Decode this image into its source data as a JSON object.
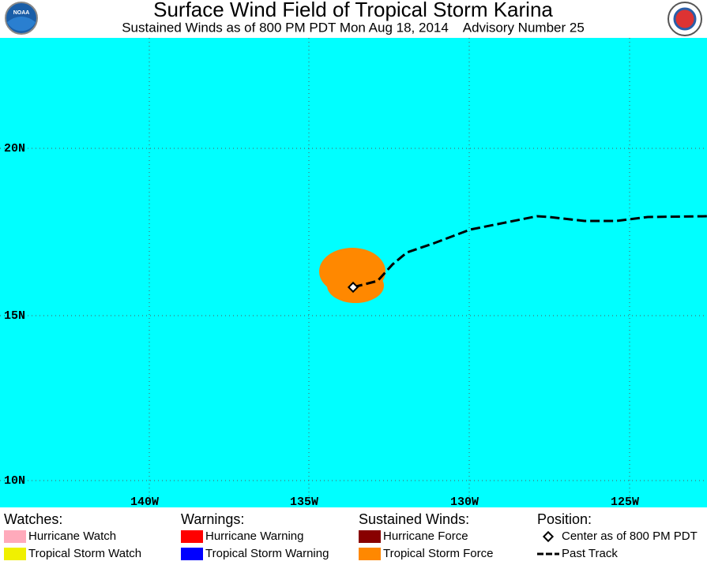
{
  "header": {
    "title": "Surface Wind Field of Tropical Storm Karina",
    "subtitle": "Sustained Winds as of 800 PM PDT Mon Aug 18, 2014    Advisory Number 25"
  },
  "map": {
    "lat_labels": [
      "20N",
      "15N",
      "10N"
    ],
    "lon_labels": [
      "140W",
      "135W",
      "130W",
      "125W"
    ]
  },
  "legend": {
    "groups": [
      {
        "title": "Watches:",
        "items": [
          {
            "label": "Hurricane Watch",
            "color": "#ffaabb"
          },
          {
            "label": "Tropical Storm Watch",
            "color": "#f0f000"
          }
        ]
      },
      {
        "title": "Warnings:",
        "items": [
          {
            "label": "Hurricane Warning",
            "color": "#ff0000"
          },
          {
            "label": "Tropical Storm Warning",
            "color": "#0000ff"
          }
        ]
      },
      {
        "title": "Sustained Winds:",
        "items": [
          {
            "label": "Hurricane Force",
            "color": "#880000"
          },
          {
            "label": "Tropical Storm Force",
            "color": "#ff8800"
          }
        ]
      },
      {
        "title": "Position:",
        "items": [
          {
            "label": "Center as of 800 PM PDT"
          },
          {
            "label": "Past Track"
          }
        ]
      }
    ]
  }
}
